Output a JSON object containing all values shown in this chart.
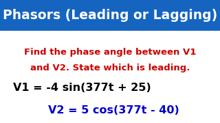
{
  "title": "Phasors (Leading or Lagging)",
  "title_bg_color": "#1565C0",
  "title_text_color": "#FFFFFF",
  "body_bg_color": "#FFFFFF",
  "instruction_line1": "Find the phase angle between V1",
  "instruction_line2": "and V2. State which is leading.",
  "instruction_color": "#CC0000",
  "eq1_text": "V1 = -4 sin(377t + 25)",
  "eq1_color": "#000000",
  "eq2_text": "V2 = 5 cos(377t - 40)",
  "eq2_color": "#0000CC",
  "title_fontsize": 13.5,
  "instruction_fontsize": 9.5,
  "eq1_fontsize": 11.5,
  "eq2_fontsize": 11.5,
  "title_bar_height": 0.25
}
